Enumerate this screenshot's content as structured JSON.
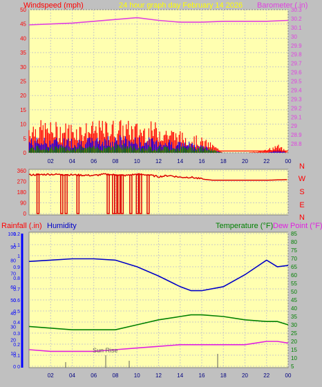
{
  "header": {
    "left_title": "Windspeed (mph)",
    "center_title": "24 hour graph day   February 14 2026",
    "right_title": "Barometer (.in)"
  },
  "colors": {
    "background": "#c0c0c0",
    "plot_bg": "#ffffb0",
    "grid": "#c8c8c8",
    "wind_speed": "#ff0000",
    "wind_gust": "#0000ff",
    "wind_avg": "#008000",
    "barometer": "#e040e0",
    "direction": "#dd0000",
    "humidity": "#0000c8",
    "temperature": "#008000",
    "dewpoint": "#e020e0",
    "rain": "#0000ff",
    "header_yellow": "#ffff00"
  },
  "x_ticks": [
    "02",
    "04",
    "06",
    "08",
    "10",
    "12",
    "14",
    "16",
    "18",
    "20",
    "22",
    "00"
  ],
  "chart_data": [
    {
      "type": "line",
      "title": "24 hour graph day   February 14 2026",
      "ylabel": "Windspeed (mph)",
      "y2label": "Barometer (.in)",
      "ylim": [
        0,
        50
      ],
      "y2lim": [
        28.7,
        30.3
      ],
      "yticks": [
        "0",
        "5",
        "10",
        "15",
        "20",
        "25",
        "30",
        "35",
        "40",
        "45",
        "50"
      ],
      "y2ticks": [
        "28.8",
        "28.9",
        "29",
        "29.1",
        "29.2",
        "29.3",
        "29.4",
        "29.5",
        "29.6",
        "29.7",
        "29.8",
        "29.9",
        "30",
        "30.1",
        "30.2",
        "30.3"
      ],
      "x": [
        0,
        2,
        4,
        6,
        8,
        10,
        12,
        14,
        16,
        18,
        20,
        22,
        24
      ],
      "series": [
        {
          "name": "Barometer (.in)",
          "axis": "right",
          "values": [
            30.13,
            30.14,
            30.15,
            30.17,
            30.19,
            30.21,
            30.18,
            30.16,
            30.16,
            30.17,
            30.17,
            30.17,
            30.18
          ]
        }
      ],
      "wind_envelope": {
        "x": [
          0,
          2,
          4,
          6,
          8,
          10,
          12,
          14,
          16,
          17,
          18,
          20,
          22,
          23,
          24
        ],
        "speed": [
          11,
          10,
          10,
          10,
          11,
          10,
          10,
          7,
          5,
          3,
          0,
          0,
          1,
          3,
          0
        ],
        "gust": [
          5,
          5,
          5,
          5,
          6,
          5,
          5,
          4,
          3,
          1,
          0,
          0,
          0,
          1,
          0
        ],
        "average": [
          2,
          2,
          2,
          2,
          3,
          2,
          2,
          2,
          2,
          1,
          0,
          0,
          0,
          0,
          0
        ]
      }
    },
    {
      "type": "line",
      "title": "",
      "ylabel": "",
      "ylim": [
        0,
        360
      ],
      "yticks": [
        "0",
        "90",
        "180",
        "270",
        "360"
      ],
      "compass": [
        "N",
        "W",
        "S",
        "E",
        "N"
      ],
      "x": [
        0,
        2,
        4,
        6,
        7,
        8,
        9,
        10,
        11,
        12,
        13,
        14,
        15,
        16,
        17,
        18,
        20,
        22,
        24
      ],
      "series": [
        {
          "name": "Wind Direction",
          "values": [
            325,
            330,
            325,
            320,
            330,
            325,
            320,
            330,
            325,
            310,
            320,
            305,
            305,
            290,
            280,
            280,
            280,
            280,
            285
          ]
        }
      ],
      "dropouts_x": [
        0.8,
        3.0,
        3.4,
        4.5,
        7.3,
        7.8,
        8.0,
        8.3,
        8.6,
        9.4,
        10.0,
        10.3,
        11.0
      ]
    },
    {
      "type": "line",
      "title": "",
      "ylabel": "Rainfall (.in)",
      "y_humidity_label": "Humidity",
      "y2label": "Temperature (°F) Dew Point (°F)",
      "temperature_label": "Temperature (°F)",
      "dewpoint_label": "Dew Point (°F)",
      "annotation": "Sun Rise",
      "ylim": [
        0,
        1.2
      ],
      "humidity_lim": [
        0,
        100
      ],
      "y2lim": [
        5,
        85
      ],
      "yticks_rain": [
        "0",
        "0.1",
        "0.2",
        "0.3",
        "0.4",
        "0.5",
        "0.6",
        "0.7",
        "0.8",
        "0.9",
        "1",
        "1.1",
        "1.2"
      ],
      "yticks_humidity": [
        "0",
        "10",
        "20",
        "30",
        "40",
        "50",
        "60",
        "70",
        "80",
        "90",
        "100"
      ],
      "y2ticks": [
        "5",
        "10",
        "15",
        "20",
        "25",
        "30",
        "35",
        "40",
        "45",
        "50",
        "55",
        "60",
        "65",
        "70",
        "75",
        "80",
        "85"
      ],
      "x": [
        0,
        2,
        4,
        6,
        8,
        10,
        12,
        14,
        15,
        16,
        18,
        20,
        22,
        23,
        24
      ],
      "series": [
        {
          "name": "Humidity",
          "axis": "humidity",
          "values": [
            79,
            80,
            81,
            81,
            80,
            75,
            68,
            60,
            57,
            57,
            60,
            69,
            80,
            75,
            76
          ]
        },
        {
          "name": "Temperature (°F)",
          "axis": "right",
          "values": [
            29,
            28,
            27,
            27,
            27,
            30,
            33,
            35,
            36,
            36,
            35,
            33,
            32,
            32,
            30
          ]
        },
        {
          "name": "Dew Point (°F)",
          "axis": "right",
          "values": [
            15,
            14,
            14,
            14,
            15,
            16,
            17,
            18,
            18,
            18,
            18,
            18,
            20,
            20,
            19
          ]
        }
      ]
    }
  ]
}
